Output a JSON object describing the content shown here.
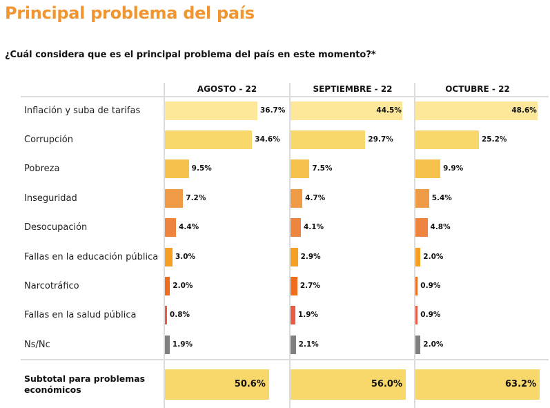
{
  "title": "Principal problema del país",
  "question": "¿Cuál considera que es el principal problema del país en este momento?*",
  "chart_data": {
    "type": "bar",
    "orientation": "horizontal",
    "panels": [
      "AGOSTO - 22",
      "SEPTIEMBRE - 22",
      "OCTUBRE - 22"
    ],
    "categories": [
      "Inflación y suba de tarifas",
      "Corrupción",
      "Pobreza",
      "Inseguridad",
      "Desocupación",
      "Fallas en la educación pública",
      "Narcotráfico",
      "Fallas en la salud pública",
      "Ns/Nc"
    ],
    "colors": [
      "#fce79a",
      "#f9d86b",
      "#f6c14a",
      "#ef9a45",
      "#ed8541",
      "#f4a023",
      "#ee6c1c",
      "#e95b45",
      "#808080"
    ],
    "series": [
      {
        "name": "AGOSTO - 22",
        "values": [
          36.7,
          34.6,
          9.5,
          7.2,
          4.4,
          3.0,
          2.0,
          0.8,
          1.9
        ]
      },
      {
        "name": "SEPTIEMBRE - 22",
        "values": [
          44.5,
          29.7,
          7.5,
          4.7,
          4.1,
          2.9,
          2.7,
          1.9,
          2.1
        ]
      },
      {
        "name": "OCTUBRE - 22",
        "values": [
          48.6,
          25.2,
          9.9,
          5.4,
          4.8,
          2.0,
          0.9,
          0.9,
          2.0
        ]
      }
    ],
    "value_format": "percent_1dp",
    "subtotal": {
      "label": "Subtotal para problemas económicos",
      "values": [
        50.6,
        56.0,
        63.2
      ],
      "color": "#f9d86b"
    }
  }
}
